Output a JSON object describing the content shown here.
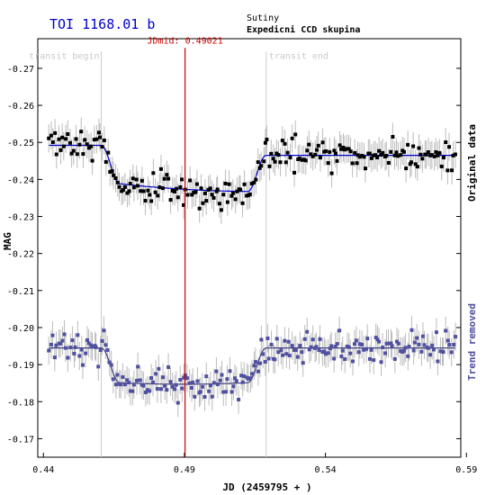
{
  "title": "TOI 1168.01 b",
  "observer": "Sutiny",
  "team": "Expedicni CCD skupina",
  "chart_data": {
    "type": "scatter",
    "xlabel": "JD (2459795 + )",
    "ylabel": "MAG",
    "xlim": [
      0.438,
      0.588
    ],
    "ylim": [
      -0.165,
      -0.278
    ],
    "x_ticks": [
      0.44,
      0.49,
      0.54,
      0.59
    ],
    "y_ticks": [
      -0.17,
      -0.18,
      -0.19,
      -0.2,
      -0.21,
      -0.22,
      -0.23,
      -0.24,
      -0.25,
      -0.26,
      -0.27
    ],
    "grid": false,
    "transit_begin": {
      "x": 0.4605,
      "label": "transit begin"
    },
    "transit_end": {
      "x": 0.519,
      "label": "transit end"
    },
    "jd_mid": {
      "x": 0.49021,
      "label": "JDmid: 0.49021"
    },
    "series_labels": {
      "original": "Original data",
      "detrended": "Trend removed"
    },
    "colors": {
      "original": "#000000",
      "detrended": "#5050a0",
      "model": "#0000cc",
      "mid": "#cc0000",
      "error": "#bbbbbb",
      "transit_line": "#cccccc"
    },
    "original": {
      "baseline_mag": -0.2465,
      "baseline_slope": 0.0,
      "pre_mag": -0.2492,
      "depth": 0.0105,
      "scatter": 0.0035,
      "n_points": 215,
      "x_start": 0.442,
      "x_end": 0.586,
      "seed": 11
    },
    "detrended": {
      "baseline_mag": -0.1945,
      "depth": 0.0098,
      "scatter": 0.0035,
      "n_points": 215,
      "x_start": 0.442,
      "x_end": 0.586,
      "seed": 23
    },
    "error_bar": 0.0038
  }
}
